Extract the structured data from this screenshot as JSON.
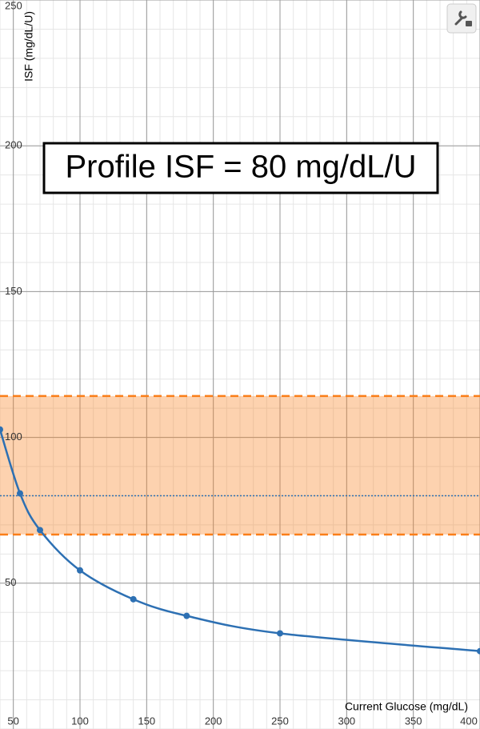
{
  "chart_data": {
    "type": "line",
    "annotation": "Profile ISF = 80 mg/dL/U",
    "x_label": "Current Glucose (mg/dL)",
    "y_label": "ISF (mg/dL/U)",
    "x": [
      40,
      55,
      70,
      100,
      140,
      180,
      250,
      400
    ],
    "series": [
      {
        "color": "#2d70b3",
        "values": [
          102.7,
          80.8,
          68.2,
          54.4,
          44.5,
          38.8,
          32.8,
          26.7
        ]
      }
    ],
    "reference_line": {
      "value": 80,
      "color": "#2d70b3"
    },
    "band": {
      "values": [
        66.7,
        114.2
      ],
      "color": "#fa7e19"
    },
    "xlim": [
      40,
      400
    ],
    "xticks": [
      50,
      100,
      150,
      200,
      250,
      300,
      350,
      400
    ],
    "ylim": [
      0,
      250
    ],
    "yticks": [
      50,
      100,
      150,
      200,
      250
    ],
    "grid": true
  }
}
